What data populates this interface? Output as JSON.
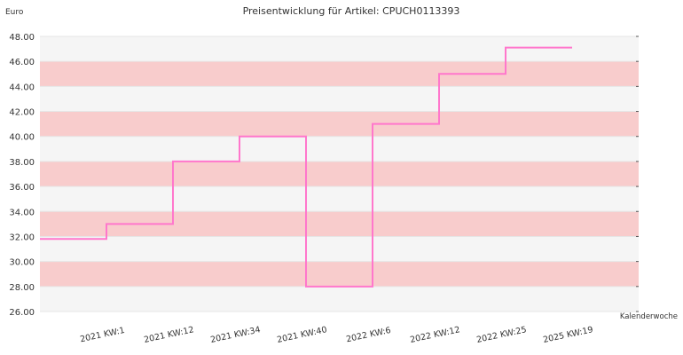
{
  "chart_data": {
    "type": "line",
    "step": true,
    "title": "Preisentwicklung für Artikel: CPUCH0113393",
    "ylabel": "Euro",
    "xlabel": "Kalenderwoche",
    "ylim": [
      26,
      48
    ],
    "yticks": [
      "26.00",
      "28.00",
      "30.00",
      "32.00",
      "34.00",
      "36.00",
      "38.00",
      "40.00",
      "42.00",
      "44.00",
      "46.00",
      "48.00"
    ],
    "categories": [
      "2021 KW:1",
      "2021 KW:12",
      "2021 KW:34",
      "2021 KW:40",
      "2022 KW:6",
      "2022 KW:12",
      "2022 KW:25",
      "2025 KW:19"
    ],
    "series": [
      {
        "values": [
          31.8,
          33.0,
          38.0,
          40.0,
          28.0,
          41.0,
          45.0,
          47.1
        ],
        "color": "#ff77cc"
      }
    ],
    "grid": true,
    "band_colors": [
      "#f5f5f5",
      "#f8cccc"
    ]
  }
}
